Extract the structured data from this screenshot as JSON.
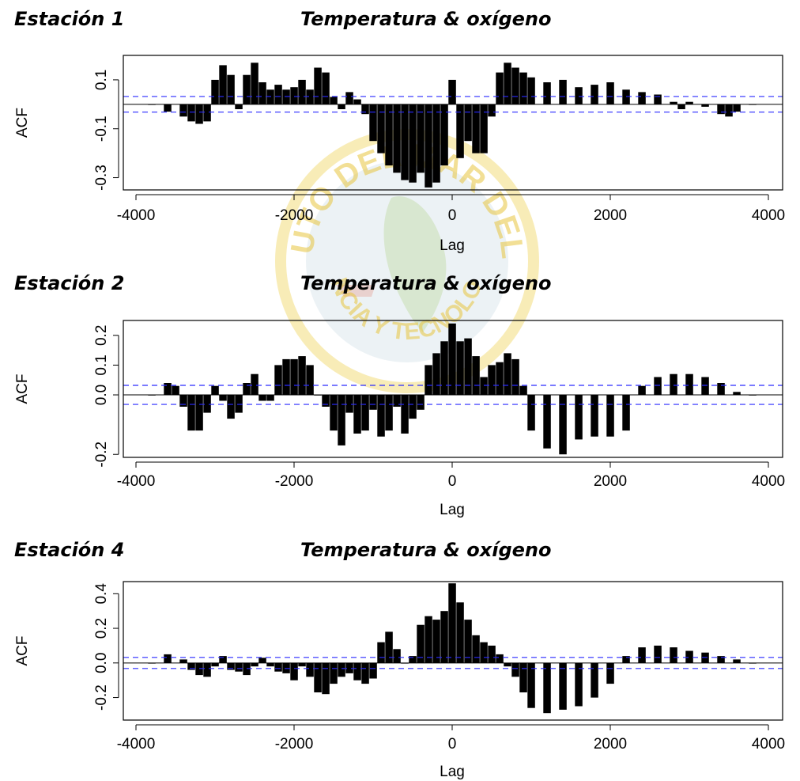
{
  "watermark": {
    "ring_text": "INSTITUTO DEL MAR DEL PERU",
    "bottom_text": "CIENCIA Y TECNOLOGIA",
    "color": "#e8c640"
  },
  "panels": [
    {
      "station": "Estación 1",
      "title": "Temperatura & oxígeno"
    },
    {
      "station": "Estación 2",
      "title": "Temperatura & oxígeno"
    },
    {
      "station": "Estación 4",
      "title": "Temperatura & oxígeno"
    }
  ],
  "chart_data": [
    {
      "type": "bar",
      "title": "Temperatura & oxígeno",
      "xlabel": "Lag",
      "ylabel": "ACF",
      "xlim": [
        -4000,
        4000
      ],
      "ylim": [
        -0.35,
        0.2
      ],
      "xticks": [
        -4000,
        -2000,
        0,
        2000,
        4000
      ],
      "yticks": [
        0.1,
        -0.1,
        -0.3
      ],
      "ytick_labels": [
        "0.1",
        "-0.1",
        "-0.3"
      ],
      "confidence_limit": 0.032,
      "confidence_color": "#2a2aff",
      "bar_color": "#000000",
      "x": [
        -3800,
        -3600,
        -3400,
        -3300,
        -3200,
        -3100,
        -3000,
        -2900,
        -2800,
        -2700,
        -2600,
        -2500,
        -2400,
        -2300,
        -2200,
        -2100,
        -2000,
        -1900,
        -1800,
        -1700,
        -1600,
        -1500,
        -1400,
        -1300,
        -1200,
        -1100,
        -1000,
        -900,
        -800,
        -700,
        -600,
        -500,
        -400,
        -300,
        -200,
        -100,
        0,
        100,
        200,
        300,
        400,
        500,
        600,
        700,
        800,
        900,
        1000,
        1200,
        1400,
        1600,
        1800,
        2000,
        2200,
        2400,
        2600,
        2800,
        2900,
        3000,
        3200,
        3400,
        3500,
        3600,
        3800
      ],
      "values": [
        0.0,
        -0.03,
        -0.05,
        -0.07,
        -0.08,
        -0.07,
        0.1,
        0.16,
        0.12,
        -0.02,
        0.12,
        0.17,
        0.09,
        0.06,
        0.08,
        0.06,
        0.07,
        0.1,
        0.06,
        0.15,
        0.13,
        0.03,
        -0.02,
        0.05,
        0.02,
        -0.04,
        -0.15,
        -0.2,
        -0.25,
        -0.28,
        -0.31,
        -0.32,
        -0.28,
        -0.34,
        -0.32,
        -0.25,
        0.1,
        -0.22,
        -0.15,
        -0.2,
        -0.2,
        -0.05,
        0.13,
        0.17,
        0.15,
        0.13,
        0.11,
        0.09,
        0.1,
        0.07,
        0.08,
        0.09,
        0.06,
        0.05,
        0.04,
        0.01,
        -0.02,
        0.01,
        -0.01,
        -0.04,
        -0.05,
        -0.03,
        0.0
      ]
    },
    {
      "type": "bar",
      "title": "Temperatura & oxígeno",
      "xlabel": "Lag",
      "ylabel": "ACF",
      "xlim": [
        -4000,
        4000
      ],
      "ylim": [
        -0.21,
        0.25
      ],
      "xticks": [
        -4000,
        -2000,
        0,
        2000,
        4000
      ],
      "yticks": [
        0.2,
        0.1,
        0.0,
        -0.2
      ],
      "ytick_labels": [
        "0.2",
        "0.1",
        "0.0",
        "-0.2"
      ],
      "confidence_limit": 0.032,
      "confidence_color": "#2a2aff",
      "bar_color": "#000000",
      "x": [
        -3800,
        -3600,
        -3500,
        -3400,
        -3300,
        -3200,
        -3100,
        -3000,
        -2900,
        -2800,
        -2700,
        -2600,
        -2500,
        -2400,
        -2300,
        -2200,
        -2100,
        -2000,
        -1900,
        -1800,
        -1700,
        -1600,
        -1500,
        -1400,
        -1300,
        -1200,
        -1100,
        -1000,
        -900,
        -800,
        -700,
        -600,
        -500,
        -400,
        -300,
        -200,
        -100,
        0,
        100,
        200,
        300,
        400,
        500,
        600,
        700,
        800,
        900,
        1000,
        1200,
        1400,
        1600,
        1800,
        2000,
        2200,
        2400,
        2600,
        2800,
        3000,
        3200,
        3400,
        3600,
        3800
      ],
      "values": [
        0.0,
        0.04,
        0.03,
        -0.04,
        -0.12,
        -0.12,
        -0.06,
        0.03,
        -0.02,
        -0.08,
        -0.06,
        0.04,
        0.07,
        -0.02,
        -0.02,
        0.1,
        0.12,
        0.12,
        0.13,
        0.1,
        0.0,
        -0.04,
        -0.12,
        -0.17,
        -0.06,
        -0.13,
        -0.12,
        -0.05,
        -0.14,
        -0.12,
        -0.04,
        -0.13,
        -0.08,
        -0.05,
        0.1,
        0.14,
        0.18,
        0.24,
        0.18,
        0.19,
        0.13,
        0.06,
        0.1,
        0.11,
        0.14,
        0.12,
        0.03,
        -0.12,
        -0.18,
        -0.2,
        -0.15,
        -0.14,
        -0.14,
        -0.12,
        0.03,
        0.06,
        0.07,
        0.07,
        0.06,
        0.04,
        0.01,
        0.0
      ]
    },
    {
      "type": "bar",
      "title": "Temperatura & oxígeno",
      "xlabel": "Lag",
      "ylabel": "ACF",
      "xlim": [
        -4000,
        4000
      ],
      "ylim": [
        -0.33,
        0.47
      ],
      "xticks": [
        -4000,
        -2000,
        0,
        2000,
        4000
      ],
      "yticks": [
        0.4,
        0.2,
        0.0,
        -0.2
      ],
      "ytick_labels": [
        "0.4",
        "0.2",
        "0.0",
        "-0.2"
      ],
      "confidence_limit": 0.032,
      "confidence_color": "#2a2aff",
      "bar_color": "#000000",
      "x": [
        -3800,
        -3600,
        -3400,
        -3300,
        -3200,
        -3100,
        -3000,
        -2900,
        -2800,
        -2700,
        -2600,
        -2500,
        -2400,
        -2300,
        -2200,
        -2100,
        -2000,
        -1900,
        -1800,
        -1700,
        -1600,
        -1500,
        -1400,
        -1300,
        -1200,
        -1100,
        -1000,
        -900,
        -800,
        -700,
        -600,
        -500,
        -400,
        -300,
        -200,
        -100,
        0,
        100,
        200,
        300,
        400,
        500,
        600,
        700,
        800,
        900,
        1000,
        1200,
        1400,
        1600,
        1800,
        2000,
        2200,
        2400,
        2600,
        2800,
        3000,
        3200,
        3400,
        3600,
        3800
      ],
      "values": [
        0.0,
        0.05,
        0.02,
        -0.04,
        -0.07,
        -0.08,
        -0.02,
        0.04,
        -0.04,
        -0.05,
        -0.07,
        -0.02,
        0.03,
        -0.02,
        -0.05,
        -0.06,
        -0.1,
        -0.02,
        -0.08,
        -0.17,
        -0.18,
        -0.12,
        -0.08,
        -0.06,
        -0.1,
        -0.12,
        -0.09,
        0.12,
        0.18,
        0.08,
        0.0,
        0.04,
        0.22,
        0.27,
        0.25,
        0.3,
        0.46,
        0.35,
        0.25,
        0.16,
        0.12,
        0.1,
        0.05,
        -0.02,
        -0.08,
        -0.17,
        -0.26,
        -0.29,
        -0.27,
        -0.25,
        -0.2,
        -0.12,
        0.04,
        0.09,
        0.1,
        0.09,
        0.07,
        0.06,
        0.04,
        0.02,
        0.0
      ]
    }
  ]
}
